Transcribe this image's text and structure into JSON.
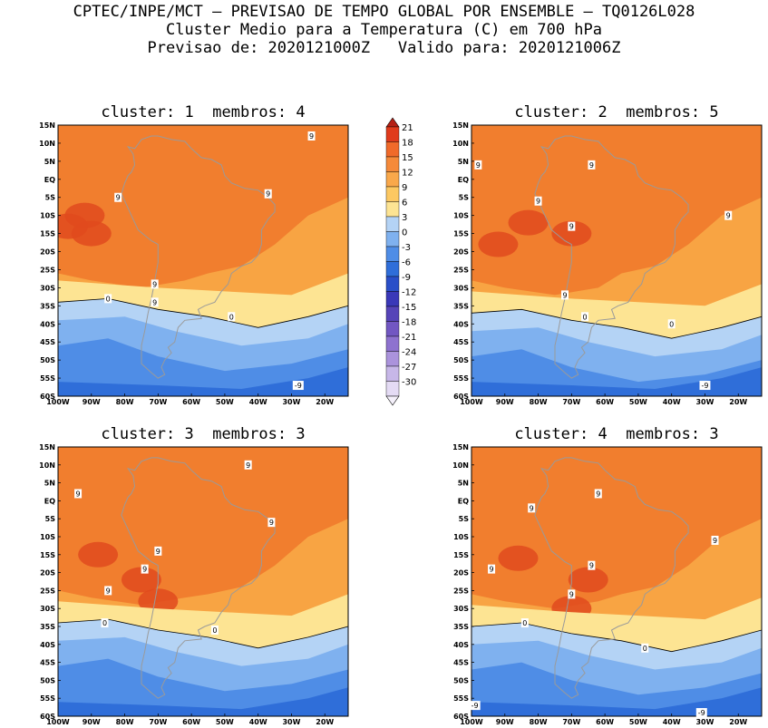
{
  "header": {
    "line1": "CPTEC/INPE/MCT – PREVISAO DE TEMPO GLOBAL POR ENSEMBLE – TQ0126L028",
    "line2": "Cluster Medio para a Temperatura (C) em 700 hPa",
    "line3": "Previsao de: 2020121000Z   Valido para: 2020121006Z"
  },
  "latitude_labels": [
    "15N",
    "10N",
    "5N",
    "EQ",
    "5S",
    "10S",
    "15S",
    "20S",
    "25S",
    "30S",
    "35S",
    "40S",
    "45S",
    "50S",
    "55S",
    "60S"
  ],
  "longitude_labels": [
    "100W",
    "90W",
    "80W",
    "70W",
    "60W",
    "50W",
    "40W",
    "30W",
    "20W"
  ],
  "colorbar": {
    "levels": [
      "21",
      "18",
      "15",
      "12",
      "9",
      "6",
      "3",
      "0",
      "-3",
      "-6",
      "-9",
      "-12",
      "-15",
      "-18",
      "-21",
      "-24",
      "-27",
      "-30"
    ],
    "colors": [
      "#e03b1c",
      "#f06a2a",
      "#f58a3a",
      "#f9a84b",
      "#fcc862",
      "#fde493",
      "#b4d3f5",
      "#7fb1ef",
      "#4f8de6",
      "#2f6ed9",
      "#2a4fc8",
      "#3a38b8",
      "#5644b8",
      "#7257c2",
      "#8e72cf",
      "#ab93dc",
      "#c7b7e8",
      "#e4dbf4"
    ]
  },
  "panels": [
    {
      "title_cluster": "cluster: 1",
      "title_membros": "membros: 4",
      "contour_labels": [
        {
          "text": "9",
          "lon": -24,
          "lat": 12
        },
        {
          "text": "9",
          "lon": -82,
          "lat": -5
        },
        {
          "text": "9",
          "lon": -37,
          "lat": -4
        },
        {
          "text": "9",
          "lon": -71,
          "lat": -29
        },
        {
          "text": "9",
          "lon": -71,
          "lat": -34
        },
        {
          "text": "0",
          "lon": -85,
          "lat": -33
        },
        {
          "text": "0",
          "lon": -48,
          "lat": -38
        },
        {
          "text": "-9",
          "lon": -28,
          "lat": -57
        }
      ]
    },
    {
      "title_cluster": "cluster: 2",
      "title_membros": "membros: 5",
      "contour_labels": [
        {
          "text": "9",
          "lon": -98,
          "lat": 4
        },
        {
          "text": "9",
          "lon": -64,
          "lat": 4
        },
        {
          "text": "9",
          "lon": -80,
          "lat": -6
        },
        {
          "text": "9",
          "lon": -23,
          "lat": -10
        },
        {
          "text": "9",
          "lon": -70,
          "lat": -13
        },
        {
          "text": "9",
          "lon": -72,
          "lat": -32
        },
        {
          "text": "0",
          "lon": -66,
          "lat": -38
        },
        {
          "text": "0",
          "lon": -40,
          "lat": -40
        },
        {
          "text": "-9",
          "lon": -30,
          "lat": -57
        }
      ]
    },
    {
      "title_cluster": "cluster: 3",
      "title_membros": "membros: 3",
      "contour_labels": [
        {
          "text": "9",
          "lon": -43,
          "lat": 10
        },
        {
          "text": "9",
          "lon": -94,
          "lat": 2
        },
        {
          "text": "9",
          "lon": -36,
          "lat": -6
        },
        {
          "text": "9",
          "lon": -70,
          "lat": -14
        },
        {
          "text": "9",
          "lon": -74,
          "lat": -19
        },
        {
          "text": "9",
          "lon": -85,
          "lat": -25
        },
        {
          "text": "0",
          "lon": -86,
          "lat": -34
        },
        {
          "text": "0",
          "lon": -53,
          "lat": -36
        }
      ]
    },
    {
      "title_cluster": "cluster: 4",
      "title_membros": "membros: 3",
      "contour_labels": [
        {
          "text": "9",
          "lon": -62,
          "lat": 2
        },
        {
          "text": "9",
          "lon": -82,
          "lat": -2
        },
        {
          "text": "9",
          "lon": -27,
          "lat": -11
        },
        {
          "text": "9",
          "lon": -94,
          "lat": -19
        },
        {
          "text": "9",
          "lon": -64,
          "lat": -18
        },
        {
          "text": "9",
          "lon": -70,
          "lat": -26
        },
        {
          "text": "0",
          "lon": -84,
          "lat": -34
        },
        {
          "text": "0",
          "lon": -48,
          "lat": -41
        },
        {
          "text": "-9",
          "lon": -99,
          "lat": -57
        },
        {
          "text": "-9",
          "lon": -31,
          "lat": -59
        }
      ]
    }
  ]
}
